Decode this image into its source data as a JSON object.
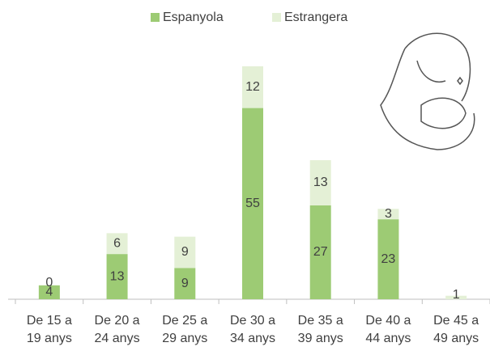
{
  "chart_data": {
    "type": "stacked-bar",
    "categories": [
      "De 15 a 19 anys",
      "De 20 a 24 anys",
      "De 25 a 29 anys",
      "De 30 a 34 anys",
      "De 35 a 39 anys",
      "De 40 a 44 anys",
      "De 45 a 49 anys"
    ],
    "series": [
      {
        "name": "Espanyola",
        "color": "#9dcb74",
        "values": [
          4,
          13,
          9,
          55,
          27,
          23,
          null
        ]
      },
      {
        "name": "Estrangera",
        "color": "#e4f0d6",
        "values": [
          0,
          6,
          9,
          12,
          13,
          3,
          1
        ]
      }
    ],
    "legend": "top"
  }
}
